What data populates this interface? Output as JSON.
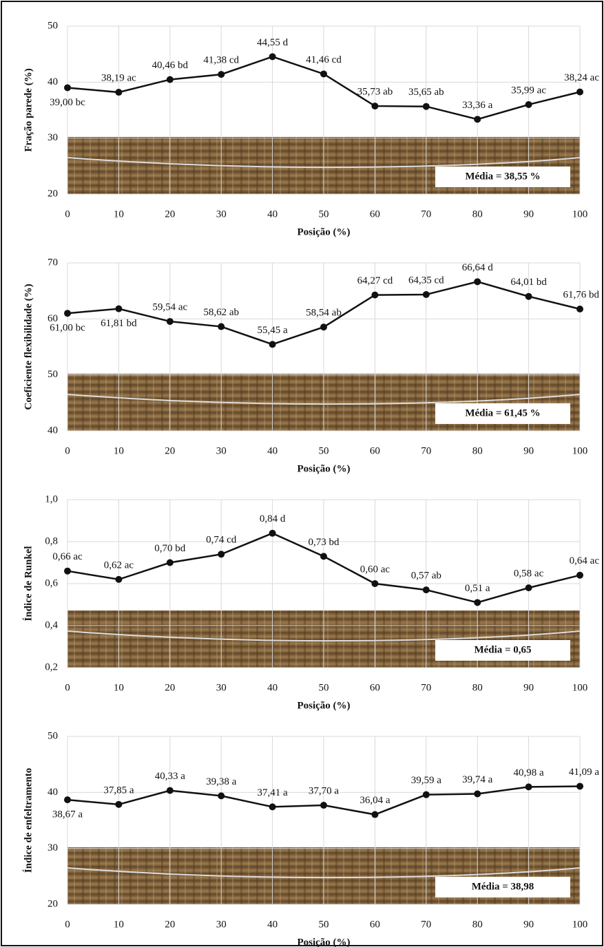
{
  "chart_data": [
    {
      "type": "line",
      "xlabel": "Posição (%)",
      "ylabel": "Fração parede (%)",
      "x": [
        0,
        10,
        20,
        30,
        40,
        50,
        60,
        70,
        80,
        90,
        100
      ],
      "xlim": [
        0,
        100
      ],
      "xticks": [
        0,
        10,
        20,
        30,
        40,
        50,
        60,
        70,
        80,
        90,
        100
      ],
      "ylim": [
        20,
        50
      ],
      "yticks": [
        20,
        30,
        40,
        50
      ],
      "grid": true,
      "annotation": "Média = 38,55 %",
      "series": [
        {
          "color": "#111111",
          "values": [
            39.0,
            38.19,
            40.46,
            41.38,
            44.55,
            41.46,
            35.73,
            35.65,
            33.36,
            35.99,
            38.24
          ],
          "value_labels": [
            "39,00 bc",
            "38,19 ac",
            "40,46 bd",
            "41,38 cd",
            "44,55 d",
            "41,46 cd",
            "35,73 ab",
            "35,65 ab",
            "33,36 a",
            "35,99 ac",
            "38,24 ac"
          ]
        }
      ]
    },
    {
      "type": "line",
      "xlabel": "Posição (%)",
      "ylabel": "Coeficiente flexibilidade (%)",
      "x": [
        0,
        10,
        20,
        30,
        40,
        50,
        60,
        70,
        80,
        90,
        100
      ],
      "xlim": [
        0,
        100
      ],
      "xticks": [
        0,
        10,
        20,
        30,
        40,
        50,
        60,
        70,
        80,
        90,
        100
      ],
      "ylim": [
        40,
        70
      ],
      "yticks": [
        40,
        50,
        60,
        70
      ],
      "grid": true,
      "annotation": "Média = 61,45 %",
      "series": [
        {
          "color": "#111111",
          "values": [
            61.0,
            61.81,
            59.54,
            58.62,
            55.45,
            58.54,
            64.27,
            64.35,
            66.64,
            64.01,
            61.76
          ],
          "value_labels": [
            "61,00 bc",
            "61,81 bd",
            "59,54 ac",
            "58,62 ab",
            "55,45 a",
            "58,54 ab",
            "64,27 cd",
            "64,35 cd",
            "66,64 d",
            "64,01 bd",
            "61,76 bd"
          ]
        }
      ]
    },
    {
      "type": "line",
      "xlabel": "Posição (%)",
      "ylabel": "Índice de Runkel",
      "x": [
        0,
        10,
        20,
        30,
        40,
        50,
        60,
        70,
        80,
        90,
        100
      ],
      "xlim": [
        0,
        100
      ],
      "xticks": [
        0,
        10,
        20,
        30,
        40,
        50,
        60,
        70,
        80,
        90,
        100
      ],
      "ylim": [
        0.2,
        1.0
      ],
      "yticks": [
        {
          "value": 0.2,
          "label": "0,2"
        },
        {
          "value": 0.4,
          "label": "0,4"
        },
        {
          "value": 0.6,
          "label": "0,6"
        },
        {
          "value": 0.8,
          "label": "0,8"
        },
        {
          "value": 1.0,
          "label": "1,0"
        }
      ],
      "grid": true,
      "annotation": "Média = 0,65",
      "series": [
        {
          "color": "#111111",
          "values": [
            0.66,
            0.62,
            0.7,
            0.74,
            0.84,
            0.73,
            0.6,
            0.57,
            0.51,
            0.58,
            0.64
          ],
          "value_labels": [
            "0,66 ac",
            "0,62 ac",
            "0,70 bd",
            "0,74 cd",
            "0,84 d",
            "0,73 bd",
            "0,60 ac",
            "0,57 ab",
            "0,51 a",
            "0,58 ac",
            "0,64 ac"
          ]
        }
      ]
    },
    {
      "type": "line",
      "xlabel": "Posição (%)",
      "ylabel": "Índice de enfeltramento",
      "x": [
        0,
        10,
        20,
        30,
        40,
        50,
        60,
        70,
        80,
        90,
        100
      ],
      "xlim": [
        0,
        100
      ],
      "xticks": [
        0,
        10,
        20,
        30,
        40,
        50,
        60,
        70,
        80,
        90,
        100
      ],
      "ylim": [
        20,
        50
      ],
      "yticks": [
        20,
        30,
        40,
        50
      ],
      "grid": true,
      "annotation": "Média = 38,98",
      "series": [
        {
          "color": "#111111",
          "values": [
            38.67,
            37.85,
            40.33,
            39.38,
            37.41,
            37.7,
            36.04,
            39.59,
            39.74,
            40.98,
            41.09
          ],
          "value_labels": [
            "38,67 a",
            "37,85 a",
            "40,33 a",
            "39,38 a",
            "37,41 a",
            "37,70 a",
            "36,04 a",
            "39,59 a",
            "39,74 a",
            "40,98 a",
            "41,09 a"
          ]
        }
      ]
    }
  ]
}
